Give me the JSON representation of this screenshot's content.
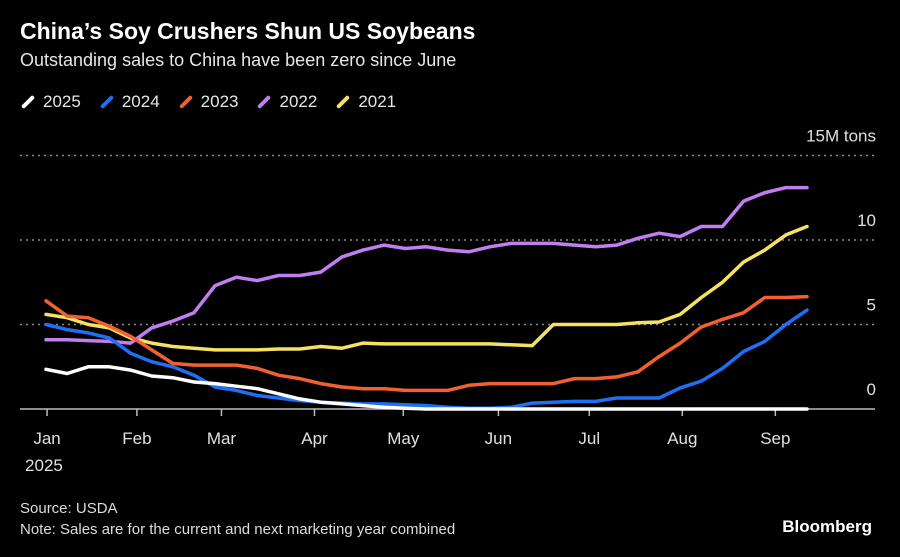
{
  "chart_data": {
    "type": "line",
    "title": "China’s Soy Crushers Shun US Soybeans",
    "subtitle": "Outstanding sales to China have been zero since June",
    "xlabel": "",
    "ylabel": "",
    "unit_label": "15M tons",
    "ylim": [
      0,
      15
    ],
    "yticks": [
      {
        "value": 15,
        "label": "15M tons"
      },
      {
        "value": 10,
        "label": "10"
      },
      {
        "value": 5,
        "label": "5"
      },
      {
        "value": 0,
        "label": "0"
      }
    ],
    "x_unit": "weeks since start of January",
    "xlim": [
      0,
      36
    ],
    "xticks": [
      {
        "pos": 0.05,
        "label": "Jan",
        "sub": "2025"
      },
      {
        "pos": 4.3,
        "label": "Feb"
      },
      {
        "pos": 8.3,
        "label": "Mar"
      },
      {
        "pos": 12.7,
        "label": "Apr"
      },
      {
        "pos": 16.9,
        "label": "May"
      },
      {
        "pos": 21.4,
        "label": "Jun"
      },
      {
        "pos": 25.7,
        "label": "Jul"
      },
      {
        "pos": 30.1,
        "label": "Aug"
      },
      {
        "pos": 34.5,
        "label": "Sep"
      }
    ],
    "grid": true,
    "legend_position": "top-left",
    "series": [
      {
        "name": "2021",
        "color": "#f5e162",
        "values": [
          5.6,
          5.4,
          5.0,
          4.8,
          4.2,
          3.9,
          3.7,
          3.6,
          3.5,
          3.5,
          3.5,
          3.55,
          3.55,
          3.7,
          3.6,
          3.9,
          3.85,
          3.85,
          3.85,
          3.85,
          3.85,
          3.85,
          3.8,
          3.75,
          5.0,
          5.0,
          5.0,
          5.0,
          5.1,
          5.15,
          5.6,
          6.6,
          7.5,
          8.7,
          9.4,
          10.3,
          10.8
        ]
      },
      {
        "name": "2022",
        "color": "#c07ef0",
        "values": [
          4.1,
          4.1,
          4.05,
          4.0,
          3.9,
          4.8,
          5.2,
          5.7,
          7.3,
          7.8,
          7.6,
          7.9,
          7.9,
          8.1,
          9.0,
          9.4,
          9.7,
          9.5,
          9.6,
          9.4,
          9.3,
          9.6,
          9.8,
          9.8,
          9.8,
          9.7,
          9.6,
          9.7,
          10.1,
          10.4,
          10.2,
          10.8,
          10.8,
          12.3,
          12.8,
          13.1,
          13.1
        ]
      },
      {
        "name": "2023",
        "color": "#f2602f",
        "values": [
          6.4,
          5.5,
          5.4,
          4.9,
          4.3,
          3.5,
          2.7,
          2.6,
          2.6,
          2.6,
          2.4,
          2.0,
          1.8,
          1.5,
          1.3,
          1.2,
          1.2,
          1.1,
          1.1,
          1.1,
          1.4,
          1.5,
          1.5,
          1.5,
          1.5,
          1.8,
          1.8,
          1.9,
          2.2,
          3.1,
          3.9,
          4.85,
          5.3,
          5.7,
          6.6,
          6.6,
          6.65
        ]
      },
      {
        "name": "2024",
        "color": "#1f6ff5",
        "values": [
          5.0,
          4.7,
          4.5,
          4.2,
          3.3,
          2.8,
          2.5,
          2.0,
          1.3,
          1.1,
          0.8,
          0.65,
          0.5,
          0.4,
          0.35,
          0.3,
          0.3,
          0.25,
          0.2,
          0.1,
          0.05,
          0.05,
          0.1,
          0.35,
          0.4,
          0.45,
          0.45,
          0.65,
          0.65,
          0.65,
          1.25,
          1.65,
          2.4,
          3.4,
          4.0,
          5.0,
          5.85
        ]
      },
      {
        "name": "2025",
        "color": "#ffffff",
        "values": [
          2.35,
          2.1,
          2.5,
          2.5,
          2.3,
          1.95,
          1.85,
          1.6,
          1.5,
          1.35,
          1.2,
          0.9,
          0.6,
          0.4,
          0.3,
          0.2,
          0.1,
          0.05,
          0,
          0,
          0,
          0,
          0,
          0,
          0,
          0,
          0,
          0,
          0,
          0,
          0,
          0,
          0,
          0,
          0,
          0,
          0
        ]
      }
    ],
    "legend_order": [
      "2025",
      "2024",
      "2023",
      "2022",
      "2021"
    ]
  },
  "footer": {
    "source": "Source: USDA",
    "note": "Note: Sales are for the current and next marketing year combined",
    "brand": "Bloomberg"
  }
}
